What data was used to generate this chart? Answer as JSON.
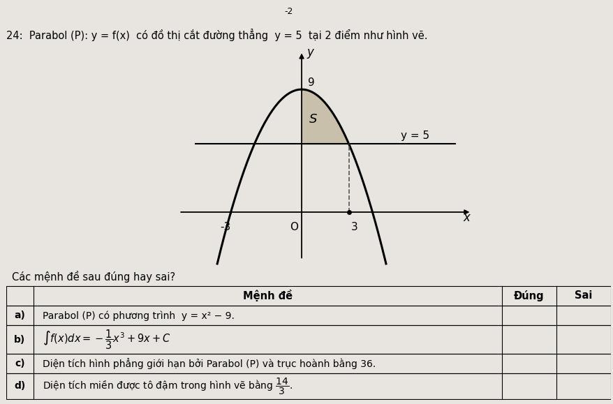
{
  "bg_color": "#e8e5e0",
  "parabola_color": "#000000",
  "line_color": "#000000",
  "shaded_color": "#c8c0aa",
  "dashed_color": "#555555",
  "title_text": "24:  Parabol (P): y = f(x) có đồ thị cắt đường thẳng  y = 5  tại 2 điểm như hình vẽ.",
  "header_minus2": "-2",
  "label_9": "9",
  "label_S": "S",
  "label_y5": "y = 5",
  "label_neg3": "-3",
  "label_3": "3",
  "label_O": "O",
  "label_x": "x",
  "label_y": "y",
  "cacmenh": "Các mệnh đề sau đúng hay sai?",
  "table_header": "Mệnh đề",
  "table_col_dung": "Đúng",
  "table_col_sai": "Sai",
  "row_a_label": "a)",
  "row_a_text": "Parabol (P) có phương trình  y = x² − 9.",
  "row_b_label": "b)",
  "row_c_label": "c)",
  "row_c_text": "Diện tích hình phẳng giới hạn bởi Parabol (P) và trục hoành bằng 36.",
  "row_d_label": "d)",
  "row_d_text": "Diện tích miền được tô đậm trong hình vẽ bằng"
}
